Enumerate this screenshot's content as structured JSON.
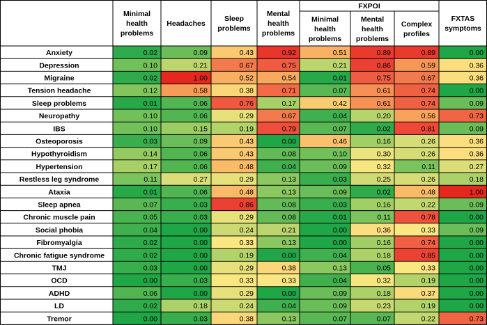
{
  "chart_data": {
    "type": "heatmap",
    "group_header": "FXPOI",
    "columns": [
      {
        "label": "Minimal health problems",
        "lines": [
          "Minimal",
          "health",
          "problems"
        ],
        "group": ""
      },
      {
        "label": "Headaches",
        "lines": [
          "Headaches"
        ],
        "group": ""
      },
      {
        "label": "Sleep problems",
        "lines": [
          "Sleep",
          "problems"
        ],
        "group": ""
      },
      {
        "label": "Mental health problems",
        "lines": [
          "Mental",
          "health",
          "problems"
        ],
        "group": ""
      },
      {
        "label": "Minimal health problems",
        "lines": [
          "Minimal",
          "health",
          "problems"
        ],
        "group": "FXPOI"
      },
      {
        "label": "Mental health problems",
        "lines": [
          "Mental",
          "health",
          "problems"
        ],
        "group": "FXPOI"
      },
      {
        "label": "Complex profiles",
        "lines": [
          "Complex",
          "profiles"
        ],
        "group": "FXPOI"
      },
      {
        "label": "FXTAS symptoms",
        "lines": [
          "FXTAS",
          "symptoms"
        ],
        "group": ""
      }
    ],
    "rows": [
      {
        "label": "Anxiety",
        "values": [
          "0.02",
          "0.09",
          "0.43",
          "0.92",
          "0.51",
          "0.89",
          "0.89",
          "0.00"
        ]
      },
      {
        "label": "Depression",
        "values": [
          "0.10",
          "0.21",
          "0.67",
          "0.75",
          "0.21",
          "0.86",
          "0.59",
          "0.36"
        ]
      },
      {
        "label": "Migraine",
        "values": [
          "0.02",
          "1.00",
          "0.52",
          "0.54",
          "0.01",
          "0.75",
          "0.67",
          "0.36"
        ]
      },
      {
        "label": "Tension headache",
        "values": [
          "0.12",
          "0.58",
          "0.38",
          "0.71",
          "0.07",
          "0.61",
          "0.74",
          "0.00"
        ]
      },
      {
        "label": "Sleep problems",
        "values": [
          "0.01",
          "0.06",
          "0.76",
          "0.17",
          "0.42",
          "0.61",
          "0.74",
          "0.09"
        ]
      },
      {
        "label": "Neuropathy",
        "values": [
          "0.10",
          "0.06",
          "0.29",
          "0.67",
          "0.04",
          "0.20",
          "0.56",
          "0.73"
        ]
      },
      {
        "label": "IBS",
        "values": [
          "0.10",
          "0.15",
          "0.19",
          "0.79",
          "0.07",
          "0.02",
          "0.81",
          "0.09"
        ]
      },
      {
        "label": "Osteoporosis",
        "values": [
          "0.03",
          "0.09",
          "0.43",
          "0.00",
          "0.46",
          "0.16",
          "0.26",
          "0.36"
        ]
      },
      {
        "label": "Hypothyroidism",
        "values": [
          "0.14",
          "0.06",
          "0.43",
          "0.08",
          "0.10",
          "0.30",
          "0.26",
          "0.36"
        ]
      },
      {
        "label": "Hypertension",
        "values": [
          "0.17",
          "0.06",
          "0.48",
          "0.04",
          "0.09",
          "0.32",
          "0.11",
          "0.27"
        ]
      },
      {
        "label": "Restless leg syndrome",
        "values": [
          "0.11",
          "0.27",
          "0.29",
          "0.13",
          "0.03",
          "0.25",
          "0.26",
          "0.18"
        ]
      },
      {
        "label": "Ataxia",
        "values": [
          "0.01",
          "0.06",
          "0.48",
          "0.13",
          "0.09",
          "0.02",
          "0.48",
          "1.00"
        ]
      },
      {
        "label": "Sleep apnea",
        "values": [
          "0.07",
          "0.03",
          "0.86",
          "0.08",
          "0.03",
          "0.16",
          "0.22",
          "0.09"
        ]
      },
      {
        "label": "Chronic muscle pain",
        "values": [
          "0.05",
          "0.03",
          "0.29",
          "0.08",
          "0.01",
          "0.11",
          "0.78",
          "0.00"
        ]
      },
      {
        "label": "Social phobia",
        "values": [
          "0.04",
          "0.00",
          "0.24",
          "0.21",
          "0.00",
          "0.36",
          "0.33",
          "0.09"
        ]
      },
      {
        "label": "Fibromyalgia",
        "values": [
          "0.02",
          "0.00",
          "0.33",
          "0.13",
          "0.00",
          "0.16",
          "0.74",
          "0.00"
        ]
      },
      {
        "label": "Chronic fatigue syndrome",
        "values": [
          "0.02",
          "0.00",
          "0.19",
          "0.00",
          "0.04",
          "0.18",
          "0.85",
          "0.00"
        ]
      },
      {
        "label": "TMJ",
        "values": [
          "0.03",
          "0.00",
          "0.29",
          "0.38",
          "0.13",
          "0.05",
          "0.33",
          "0.00"
        ]
      },
      {
        "label": "OCD",
        "values": [
          "0.00",
          "0.03",
          "0.33",
          "0.33",
          "0.04",
          "0.32",
          "0.19",
          "0.00"
        ]
      },
      {
        "label": "ADHD",
        "values": [
          "0.06",
          "0.00",
          "0.29",
          "0.00",
          "0.09",
          "0.18",
          "0.37",
          "0.00"
        ]
      },
      {
        "label": "LD",
        "values": [
          "0.02",
          "0.18",
          "0.24",
          "0.04",
          "0.09",
          "0.23",
          "0.19",
          "0.00"
        ]
      },
      {
        "label": "Tremor",
        "values": [
          "0.00",
          "0.03",
          "0.38",
          "0.13",
          "0.07",
          "0.07",
          "0.22",
          "0.73"
        ]
      }
    ],
    "color_scale": {
      "min": 0,
      "max": 1,
      "stops": [
        {
          "value": 0.0,
          "color": "#1fa647"
        },
        {
          "value": 0.15,
          "color": "#9ccd63"
        },
        {
          "value": 0.33,
          "color": "#fbe782"
        },
        {
          "value": 0.55,
          "color": "#f8a65c"
        },
        {
          "value": 0.8,
          "color": "#ee4a3a"
        },
        {
          "value": 1.0,
          "color": "#e5271f"
        }
      ]
    },
    "grid": true
  }
}
